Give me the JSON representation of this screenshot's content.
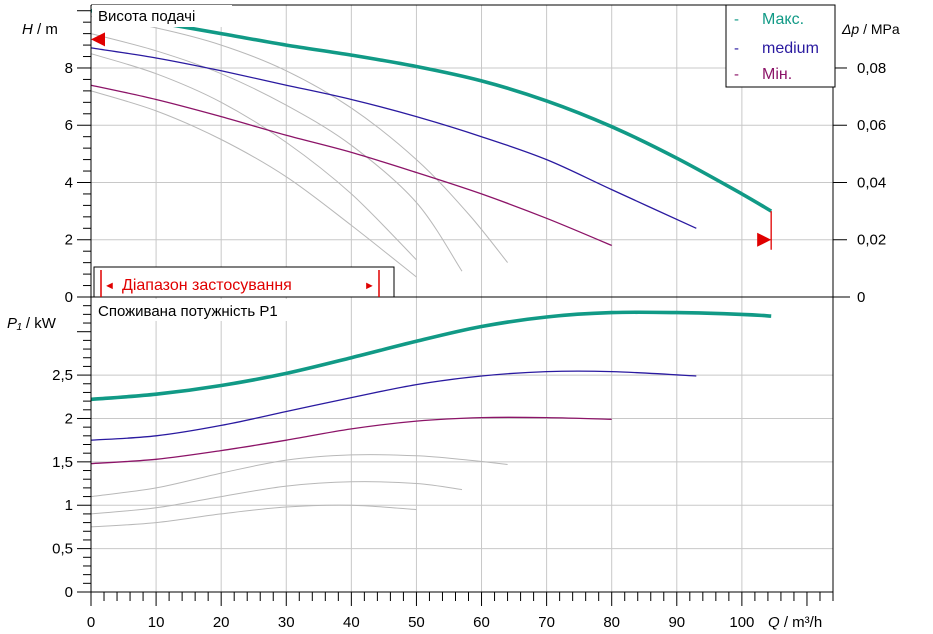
{
  "colors": {
    "max": "#119a86",
    "medium": "#2a1aa0",
    "min": "#8c1468",
    "background": "#b8b8b8",
    "range": "#e00000",
    "grid": "#c8c8c8"
  },
  "top_panel": {
    "title": "Висота подачі",
    "y_label_symbol": "H",
    "y_label_unit": " / m",
    "right_label_symbol": "Δp",
    "right_label_unit": " / MPa",
    "range_label": "Діапазон застосування",
    "range_left_glyph": "◄",
    "range_right_glyph": "►"
  },
  "bottom_panel": {
    "title": "Споживана потужність P1",
    "y_label_symbol": "P₁",
    "y_label_unit": " / kW"
  },
  "x_axis": {
    "symbol": "Q",
    "unit": " / m³/h"
  },
  "legend": [
    {
      "key": "max",
      "dash": "-",
      "label": "Макс."
    },
    {
      "key": "medium",
      "dash": "-",
      "label": "medium"
    },
    {
      "key": "min",
      "dash": "-",
      "label": "Мін."
    }
  ],
  "chart_data": [
    {
      "type": "line",
      "title": "Висота подачі",
      "xlabel": "Q / m³/h",
      "ylabel": "H / m",
      "y2label": "Δp / MPa",
      "xlim": [
        0,
        114
      ],
      "ylim": [
        0,
        10.2
      ],
      "x_ticks": [
        0,
        10,
        20,
        30,
        40,
        50,
        60,
        70,
        80,
        90,
        100
      ],
      "y_ticks": [
        0,
        2,
        4,
        6,
        8
      ],
      "y_ticks_labels": [
        "0",
        "2",
        "4",
        "6",
        "8"
      ],
      "y2_ticks": [
        0,
        0.02,
        0.04,
        0.06,
        0.08
      ],
      "y2_ticks_labels": [
        "0",
        "0,02",
        "0,04",
        "0,06",
        "0,08"
      ],
      "y2_scale_factor": 100,
      "grid": true,
      "legend_position": "top-right",
      "series": [
        {
          "name": "Макс.",
          "key": "max",
          "width": 3.6,
          "x": [
            0,
            10,
            20,
            30,
            40,
            50,
            60,
            70,
            80,
            90,
            100,
            104.5
          ],
          "y": [
            10,
            9.6,
            9.2,
            8.8,
            8.45,
            8.05,
            7.55,
            6.85,
            5.95,
            4.85,
            3.6,
            3.0
          ]
        },
        {
          "name": "medium",
          "key": "medium",
          "width": 1.3,
          "x": [
            0,
            10,
            20,
            30,
            40,
            50,
            60,
            70,
            80,
            93
          ],
          "y": [
            8.7,
            8.35,
            7.9,
            7.4,
            6.9,
            6.3,
            5.6,
            4.8,
            3.75,
            2.4
          ]
        },
        {
          "name": "Мін.",
          "key": "min",
          "width": 1.3,
          "x": [
            0,
            10,
            20,
            30,
            40,
            50,
            60,
            70,
            80
          ],
          "y": [
            7.4,
            6.9,
            6.3,
            5.65,
            5.05,
            4.35,
            3.6,
            2.75,
            1.8
          ]
        },
        {
          "key": "bg1",
          "width": 1,
          "x": [
            0,
            10,
            20,
            30,
            40,
            50,
            58,
            64
          ],
          "y": [
            9.8,
            9.4,
            8.8,
            7.9,
            6.6,
            4.8,
            2.9,
            1.2
          ]
        },
        {
          "key": "bg2",
          "width": 1,
          "x": [
            0,
            10,
            20,
            30,
            40,
            50,
            57
          ],
          "y": [
            9.2,
            8.6,
            7.8,
            6.7,
            5.3,
            3.3,
            0.9
          ]
        },
        {
          "key": "bg3",
          "width": 1,
          "x": [
            0,
            10,
            20,
            30,
            40,
            50
          ],
          "y": [
            8.5,
            7.8,
            6.8,
            5.4,
            3.6,
            1.3
          ]
        },
        {
          "key": "bg4",
          "width": 1,
          "x": [
            0,
            10,
            20,
            30,
            40,
            50
          ],
          "y": [
            7.2,
            6.5,
            5.5,
            4.2,
            2.5,
            0.7
          ]
        }
      ],
      "application_range": {
        "x_start": 2,
        "x_end": 44.5
      },
      "markers": [
        {
          "key": "left",
          "x": 0,
          "y": 9.0
        },
        {
          "key": "right",
          "x": 104.5,
          "y": 2.0
        }
      ]
    },
    {
      "type": "line",
      "title": "Споживана потужність P1",
      "xlabel": "Q / m³/h",
      "ylabel": "P₁ / kW",
      "xlim": [
        0,
        114
      ],
      "ylim": [
        0,
        3.4
      ],
      "x_ticks": [
        0,
        10,
        20,
        30,
        40,
        50,
        60,
        70,
        80,
        90,
        100
      ],
      "x_ticks_labels": [
        "0",
        "10",
        "20",
        "30",
        "40",
        "50",
        "60",
        "70",
        "80",
        "90",
        "100"
      ],
      "y_ticks": [
        0,
        0.5,
        1,
        1.5,
        2,
        2.5
      ],
      "y_ticks_labels": [
        "0",
        "0,5",
        "1",
        "1,5",
        "2",
        "2,5"
      ],
      "grid": true,
      "series": [
        {
          "name": "Макс.",
          "key": "max",
          "width": 3.6,
          "x": [
            0,
            10,
            20,
            30,
            40,
            50,
            60,
            70,
            80,
            90,
            100,
            104.5
          ],
          "y": [
            2.22,
            2.28,
            2.38,
            2.52,
            2.7,
            2.89,
            3.06,
            3.17,
            3.22,
            3.22,
            3.2,
            3.18
          ]
        },
        {
          "name": "medium",
          "key": "medium",
          "width": 1.3,
          "x": [
            0,
            10,
            20,
            30,
            40,
            50,
            60,
            70,
            80,
            93
          ],
          "y": [
            1.75,
            1.8,
            1.92,
            2.08,
            2.24,
            2.39,
            2.49,
            2.54,
            2.54,
            2.49
          ]
        },
        {
          "name": "Мін.",
          "key": "min",
          "width": 1.3,
          "x": [
            0,
            10,
            20,
            30,
            40,
            50,
            60,
            70,
            80
          ],
          "y": [
            1.48,
            1.53,
            1.63,
            1.75,
            1.88,
            1.97,
            2.01,
            2.01,
            1.99
          ]
        },
        {
          "key": "bg1",
          "width": 1,
          "x": [
            0,
            10,
            20,
            30,
            40,
            50,
            58,
            64
          ],
          "y": [
            1.1,
            1.2,
            1.37,
            1.52,
            1.58,
            1.57,
            1.52,
            1.47
          ]
        },
        {
          "key": "bg2",
          "width": 1,
          "x": [
            0,
            10,
            20,
            30,
            40,
            50,
            57
          ],
          "y": [
            0.9,
            0.97,
            1.1,
            1.22,
            1.27,
            1.25,
            1.18
          ]
        },
        {
          "key": "bg3",
          "width": 1,
          "x": [
            0,
            10,
            20,
            30,
            40,
            50
          ],
          "y": [
            0.75,
            0.8,
            0.9,
            0.98,
            1.0,
            0.95
          ]
        }
      ]
    }
  ]
}
